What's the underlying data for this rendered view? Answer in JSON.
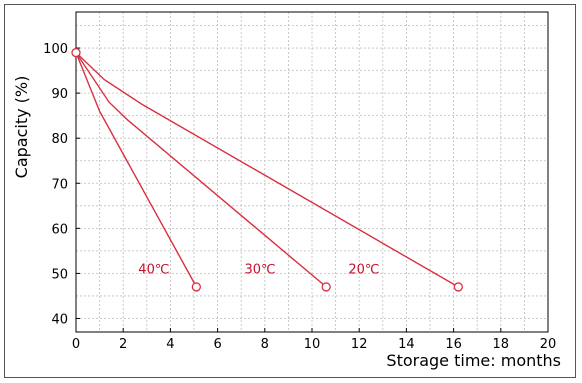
{
  "chart_data": {
    "type": "line",
    "title": "",
    "xlabel": "Storage time:  months",
    "ylabel": "Capacity (%)",
    "xlim": [
      0,
      20
    ],
    "ylim": [
      37,
      108
    ],
    "xticks": [
      0,
      2,
      4,
      6,
      8,
      10,
      12,
      14,
      16,
      18,
      20
    ],
    "yticks": [
      40,
      50,
      60,
      70,
      80,
      90,
      100
    ],
    "grid": true,
    "line_color": "#d93040",
    "series": [
      {
        "name": "40℃",
        "label_at": [
          3.3,
          50
        ],
        "points": [
          [
            0,
            99
          ],
          [
            1,
            86
          ],
          [
            5.1,
            47
          ]
        ]
      },
      {
        "name": "30℃",
        "label_at": [
          7.8,
          50
        ],
        "points": [
          [
            0,
            99
          ],
          [
            1.4,
            88
          ],
          [
            2.2,
            84
          ],
          [
            10.6,
            47
          ]
        ]
      },
      {
        "name": "20℃",
        "label_at": [
          12.2,
          50
        ],
        "points": [
          [
            0,
            99
          ],
          [
            1.2,
            93
          ],
          [
            2.8,
            87.5
          ],
          [
            16.2,
            47
          ]
        ]
      }
    ]
  }
}
